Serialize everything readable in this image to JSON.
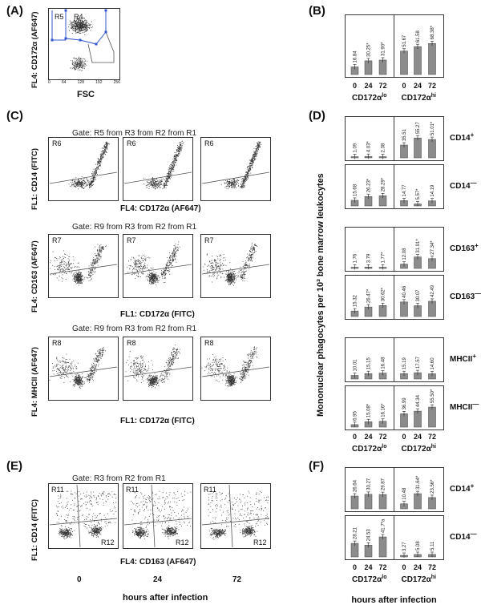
{
  "panels": {
    "A": "(A)",
    "B": "(B)",
    "C": "(C)",
    "D": "(D)",
    "E": "(E)",
    "F": "(F)"
  },
  "panelA": {
    "ylabel": "FL4: CD172α (AF647)",
    "xlabel": "FSC",
    "region_left": "R5",
    "region_right": "R4",
    "xticks": [
      "0",
      "64",
      "128",
      "192",
      "256"
    ]
  },
  "panelC": {
    "rows": [
      {
        "gate": "Gate: R5 from R3 from R2 from R1",
        "region": "R6",
        "ylabel": "FL1: CD14 (FITC)",
        "xlabel": "FL4: CD172α (AF647)"
      },
      {
        "gate": "Gate: R9 from R3 from R2 from R1",
        "region": "R7",
        "ylabel": "FL4: CD163 (AF647)",
        "xlabel": "FL1: CD172α (FITC)"
      },
      {
        "gate": "Gate: R9 from R3 from R2 from R1",
        "region": "R8",
        "ylabel": "FL4: MHCII (AF647)",
        "xlabel": "FL1: CD172α (FITC)"
      }
    ]
  },
  "panelE": {
    "gate": "Gate: R3 from R2 from R1",
    "ylabel": "FL1: CD14 (FITC)",
    "xlabel": "FL4: CD163 (AF647)",
    "r_top": "R11",
    "r_bottom": "R12",
    "times": [
      "0",
      "24",
      "72"
    ],
    "time_label": "hours after infection"
  },
  "panelD": {
    "ylabel": "Mononuclear phagocytes per 10³ bone marrow leukocytes"
  },
  "group_labels": {
    "lo": "CD172αlo",
    "hi": "CD172αhi"
  },
  "chart_data": [
    {
      "type": "bar",
      "panel": "B",
      "categories": [
        "0",
        "24",
        "72",
        "0",
        "24",
        "72"
      ],
      "groups": [
        "CD172αlo",
        "CD172αhi"
      ],
      "series": [
        {
          "name": "all",
          "values": [
            16.84,
            30.25,
            31.9,
            51.67,
            61.58,
            68.38
          ],
          "labels": [
            "16.84",
            "30.25*",
            "31.90*",
            "51.67",
            "61.58",
            "68.38*"
          ]
        }
      ]
    },
    {
      "type": "bar",
      "panel": "D",
      "categories": [
        "0",
        "24",
        "72",
        "0",
        "24",
        "72"
      ],
      "series": [
        {
          "name": "CD14+",
          "values": [
            1.09,
            4.03,
            2.38,
            35.51,
            55.27,
            51.01
          ],
          "labels": [
            "1.09",
            "4.03*",
            "2.38",
            "35.51",
            "55.27",
            "51.01*"
          ]
        },
        {
          "name": "CD14−",
          "values": [
            15.68,
            26.23,
            28.29,
            14.77,
            5.57,
            14.19
          ],
          "labels": [
            "15.68",
            "26.23*",
            "28.29*",
            "14.77",
            "5.57*",
            "14.19"
          ]
        },
        {
          "name": "CD163+",
          "values": [
            1.76,
            3.79,
            1.77,
            12.08,
            31.91,
            27.34
          ],
          "labels": [
            "1.76",
            "3.79",
            "1.77*",
            "12.08",
            "31.91*",
            "27.34*"
          ]
        },
        {
          "name": "CD163−",
          "values": [
            15.32,
            26.47,
            30.62,
            40.46,
            30.07,
            42.49
          ],
          "labels": [
            "15.32",
            "26.47*",
            "30.62*",
            "40.46",
            "30.07",
            "42.49"
          ]
        },
        {
          "name": "MHCII+",
          "values": [
            10.01,
            15.15,
            16.48,
            15.19,
            17.57,
            14.6
          ],
          "labels": [
            "10.01",
            "15.15",
            "16.48",
            "15.19",
            "17.57",
            "14.60"
          ]
        },
        {
          "name": "MHCII−",
          "values": [
            6.95,
            15.08,
            16.16,
            36.99,
            44.34,
            55.5
          ],
          "labels": [
            "6.95",
            "15.08*",
            "16.16*",
            "36.99",
            "44.34",
            "55.50*"
          ]
        }
      ],
      "row_labels": [
        "CD14+",
        "CD14−",
        "CD163+",
        "CD163−",
        "MHCII+",
        "MHCII−"
      ]
    },
    {
      "type": "bar",
      "panel": "F",
      "categories": [
        "0",
        "24",
        "72",
        "0",
        "24",
        "72"
      ],
      "series": [
        {
          "name": "CD14+",
          "values": [
            26.64,
            30.27,
            29.87,
            10.48,
            31.64,
            23.56
          ],
          "labels": [
            "26.64",
            "30.27",
            "29.87",
            "10.48",
            "31.64*",
            "23.56*"
          ]
        },
        {
          "name": "CD14−",
          "values": [
            28.21,
            24.53,
            41.7,
            3.27,
            5.08,
            5.11
          ],
          "labels": [
            "28.21",
            "24.53",
            "41.7*a",
            "3.27",
            "5.08",
            "5.11"
          ]
        }
      ],
      "row_labels": [
        "CD14+",
        "CD14−"
      ],
      "xlabel": "hours after infection"
    }
  ]
}
